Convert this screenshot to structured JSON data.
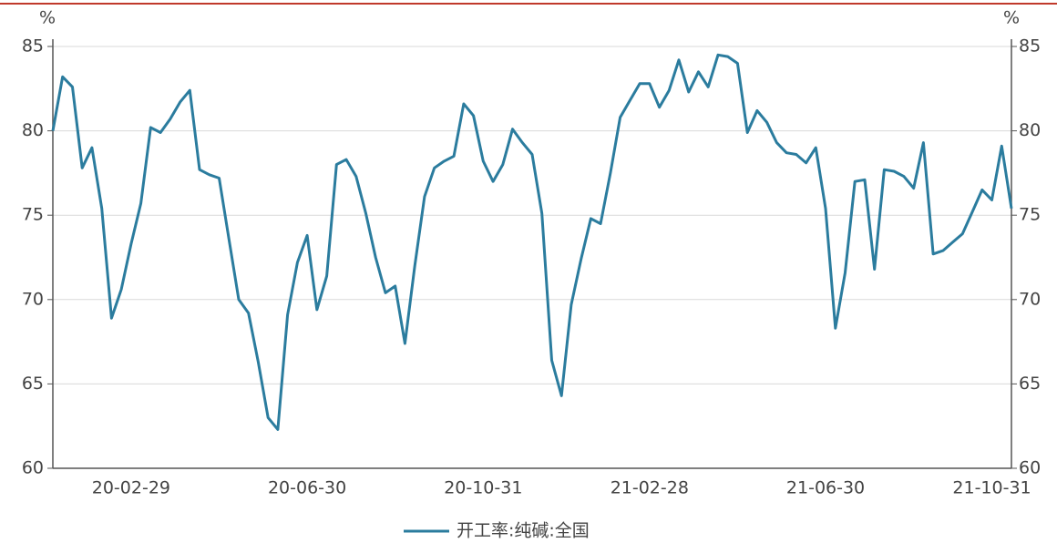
{
  "chart_data": {
    "type": "line",
    "y_unit": "%",
    "categories": [
      null,
      null,
      null,
      null,
      null,
      null,
      null,
      null,
      "20-02-29",
      null,
      null,
      null,
      null,
      null,
      null,
      null,
      null,
      null,
      null,
      null,
      null,
      null,
      null,
      null,
      null,
      null,
      "20-06-30",
      null,
      null,
      null,
      null,
      null,
      null,
      null,
      null,
      null,
      null,
      null,
      null,
      null,
      null,
      null,
      null,
      null,
      "20-10-31",
      null,
      null,
      null,
      null,
      null,
      null,
      null,
      null,
      null,
      null,
      null,
      null,
      null,
      null,
      null,
      null,
      "21-02-28",
      null,
      null,
      null,
      null,
      null,
      null,
      null,
      null,
      null,
      null,
      null,
      null,
      null,
      null,
      null,
      null,
      null,
      "21-06-30",
      null,
      null,
      null,
      null,
      null,
      null,
      null,
      null,
      null,
      null,
      null,
      null,
      null,
      null,
      null,
      null,
      "21-10-31",
      null,
      null
    ],
    "series": [
      {
        "name": "开工率:纯碱:全国",
        "color": "#2b7c9e",
        "values": [
          80.0,
          83.2,
          82.6,
          77.8,
          79.0,
          75.4,
          68.9,
          70.6,
          73.3,
          75.7,
          80.2,
          79.9,
          80.7,
          81.7,
          82.4,
          77.7,
          77.4,
          77.2,
          73.6,
          70.0,
          69.2,
          66.3,
          63.0,
          62.3,
          69.1,
          72.2,
          73.8,
          69.4,
          71.4,
          78.0,
          78.3,
          77.3,
          75.1,
          72.5,
          70.4,
          70.8,
          67.4,
          72.0,
          76.1,
          77.8,
          78.2,
          78.5,
          81.6,
          80.9,
          78.2,
          77.0,
          78.0,
          80.1,
          79.3,
          78.6,
          75.1,
          66.4,
          64.3,
          69.7,
          72.4,
          74.8,
          74.5,
          77.5,
          80.8,
          81.8,
          82.8,
          82.8,
          81.4,
          82.4,
          84.2,
          82.3,
          83.5,
          82.6,
          84.5,
          84.4,
          84.0,
          79.9,
          81.2,
          80.5,
          79.3,
          78.7,
          78.6,
          78.1,
          79.0,
          75.4,
          68.3,
          71.6,
          77.0,
          77.1,
          71.8,
          77.7,
          77.6,
          77.3,
          76.6,
          79.3,
          72.7,
          72.9,
          73.4,
          73.9,
          75.2,
          76.5,
          75.9,
          79.1,
          75.4
        ]
      }
    ],
    "ylim": [
      60,
      85
    ],
    "yticks": [
      60,
      65,
      70,
      75,
      80,
      85
    ],
    "y2lim": [
      60,
      85
    ],
    "y2ticks": [
      60,
      65,
      70,
      75,
      80,
      85
    ],
    "grid": true,
    "legend": "bottom"
  }
}
